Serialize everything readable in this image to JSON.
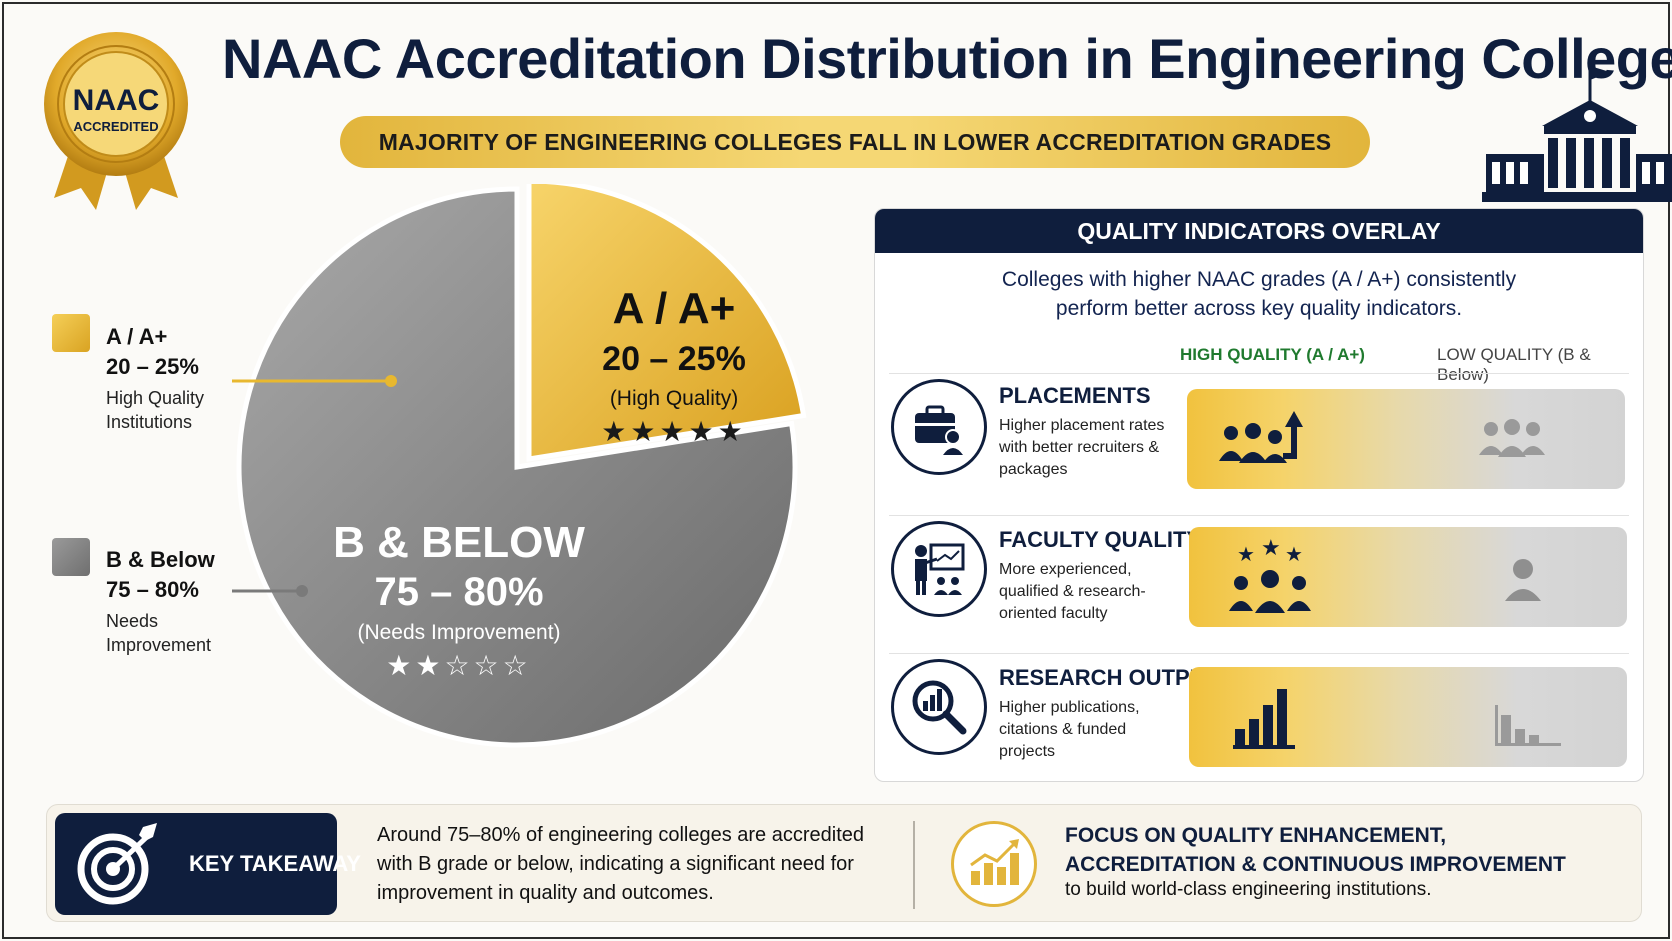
{
  "header": {
    "title": "NAAC Accreditation Distribution in Engineering Colleges",
    "subtitle": "MAJORITY OF ENGINEERING COLLEGES FALL IN LOWER ACCREDITATION GRADES",
    "badge_top": "NAAC",
    "badge_bottom": "ACCREDITED"
  },
  "chart_data": {
    "type": "pie",
    "slices": [
      {
        "name": "A / A+",
        "range": "20 – 25%",
        "value": 22.5,
        "label": "(High Quality)",
        "legend_desc": "High Quality Institutions",
        "stars": "★★★★★",
        "color": "#e8b82f"
      },
      {
        "name": "B & Below",
        "pie_name": "B & BELOW",
        "range": "75 – 80%",
        "value": 77.5,
        "label": "(Needs Improvement)",
        "legend_desc": "Needs Improvement",
        "stars": "★★☆☆☆",
        "color": "#8a8a8a"
      }
    ]
  },
  "quality_panel": {
    "title": "QUALITY INDICATORS OVERLAY",
    "intro_line1": "Colleges with higher NAAC grades (A / A+) consistently",
    "intro_line2": "perform better across key quality indicators.",
    "col_high": "HIGH QUALITY (A / A+)",
    "col_low": "LOW QUALITY (B & Below)",
    "rows": [
      {
        "title": "PLACEMENTS",
        "desc": "Higher placement rates with better recruiters & packages",
        "icon": "briefcase-icon"
      },
      {
        "title": "FACULTY QUALITY",
        "desc": "More experienced, qualified & research-oriented faculty",
        "icon": "teacher-icon"
      },
      {
        "title": "RESEARCH OUTPUT",
        "desc": "Higher publications, citations & funded projects",
        "icon": "research-icon"
      }
    ]
  },
  "takeaway": {
    "label": "KEY TAKEAWAY",
    "text": "Around 75–80% of engineering colleges are accredited with B grade or below, indicating a significant need for improvement in quality and outcomes.",
    "focus_line1": "FOCUS ON QUALITY ENHANCEMENT,",
    "focus_line2": "ACCREDITATION & CONTINUOUS IMPROVEMENT",
    "focus_sub": "to build world-class engineering institutions."
  },
  "colors": {
    "navy": "#0f1e3d",
    "gold": "#e8b82f",
    "gray": "#8a8a8a"
  }
}
